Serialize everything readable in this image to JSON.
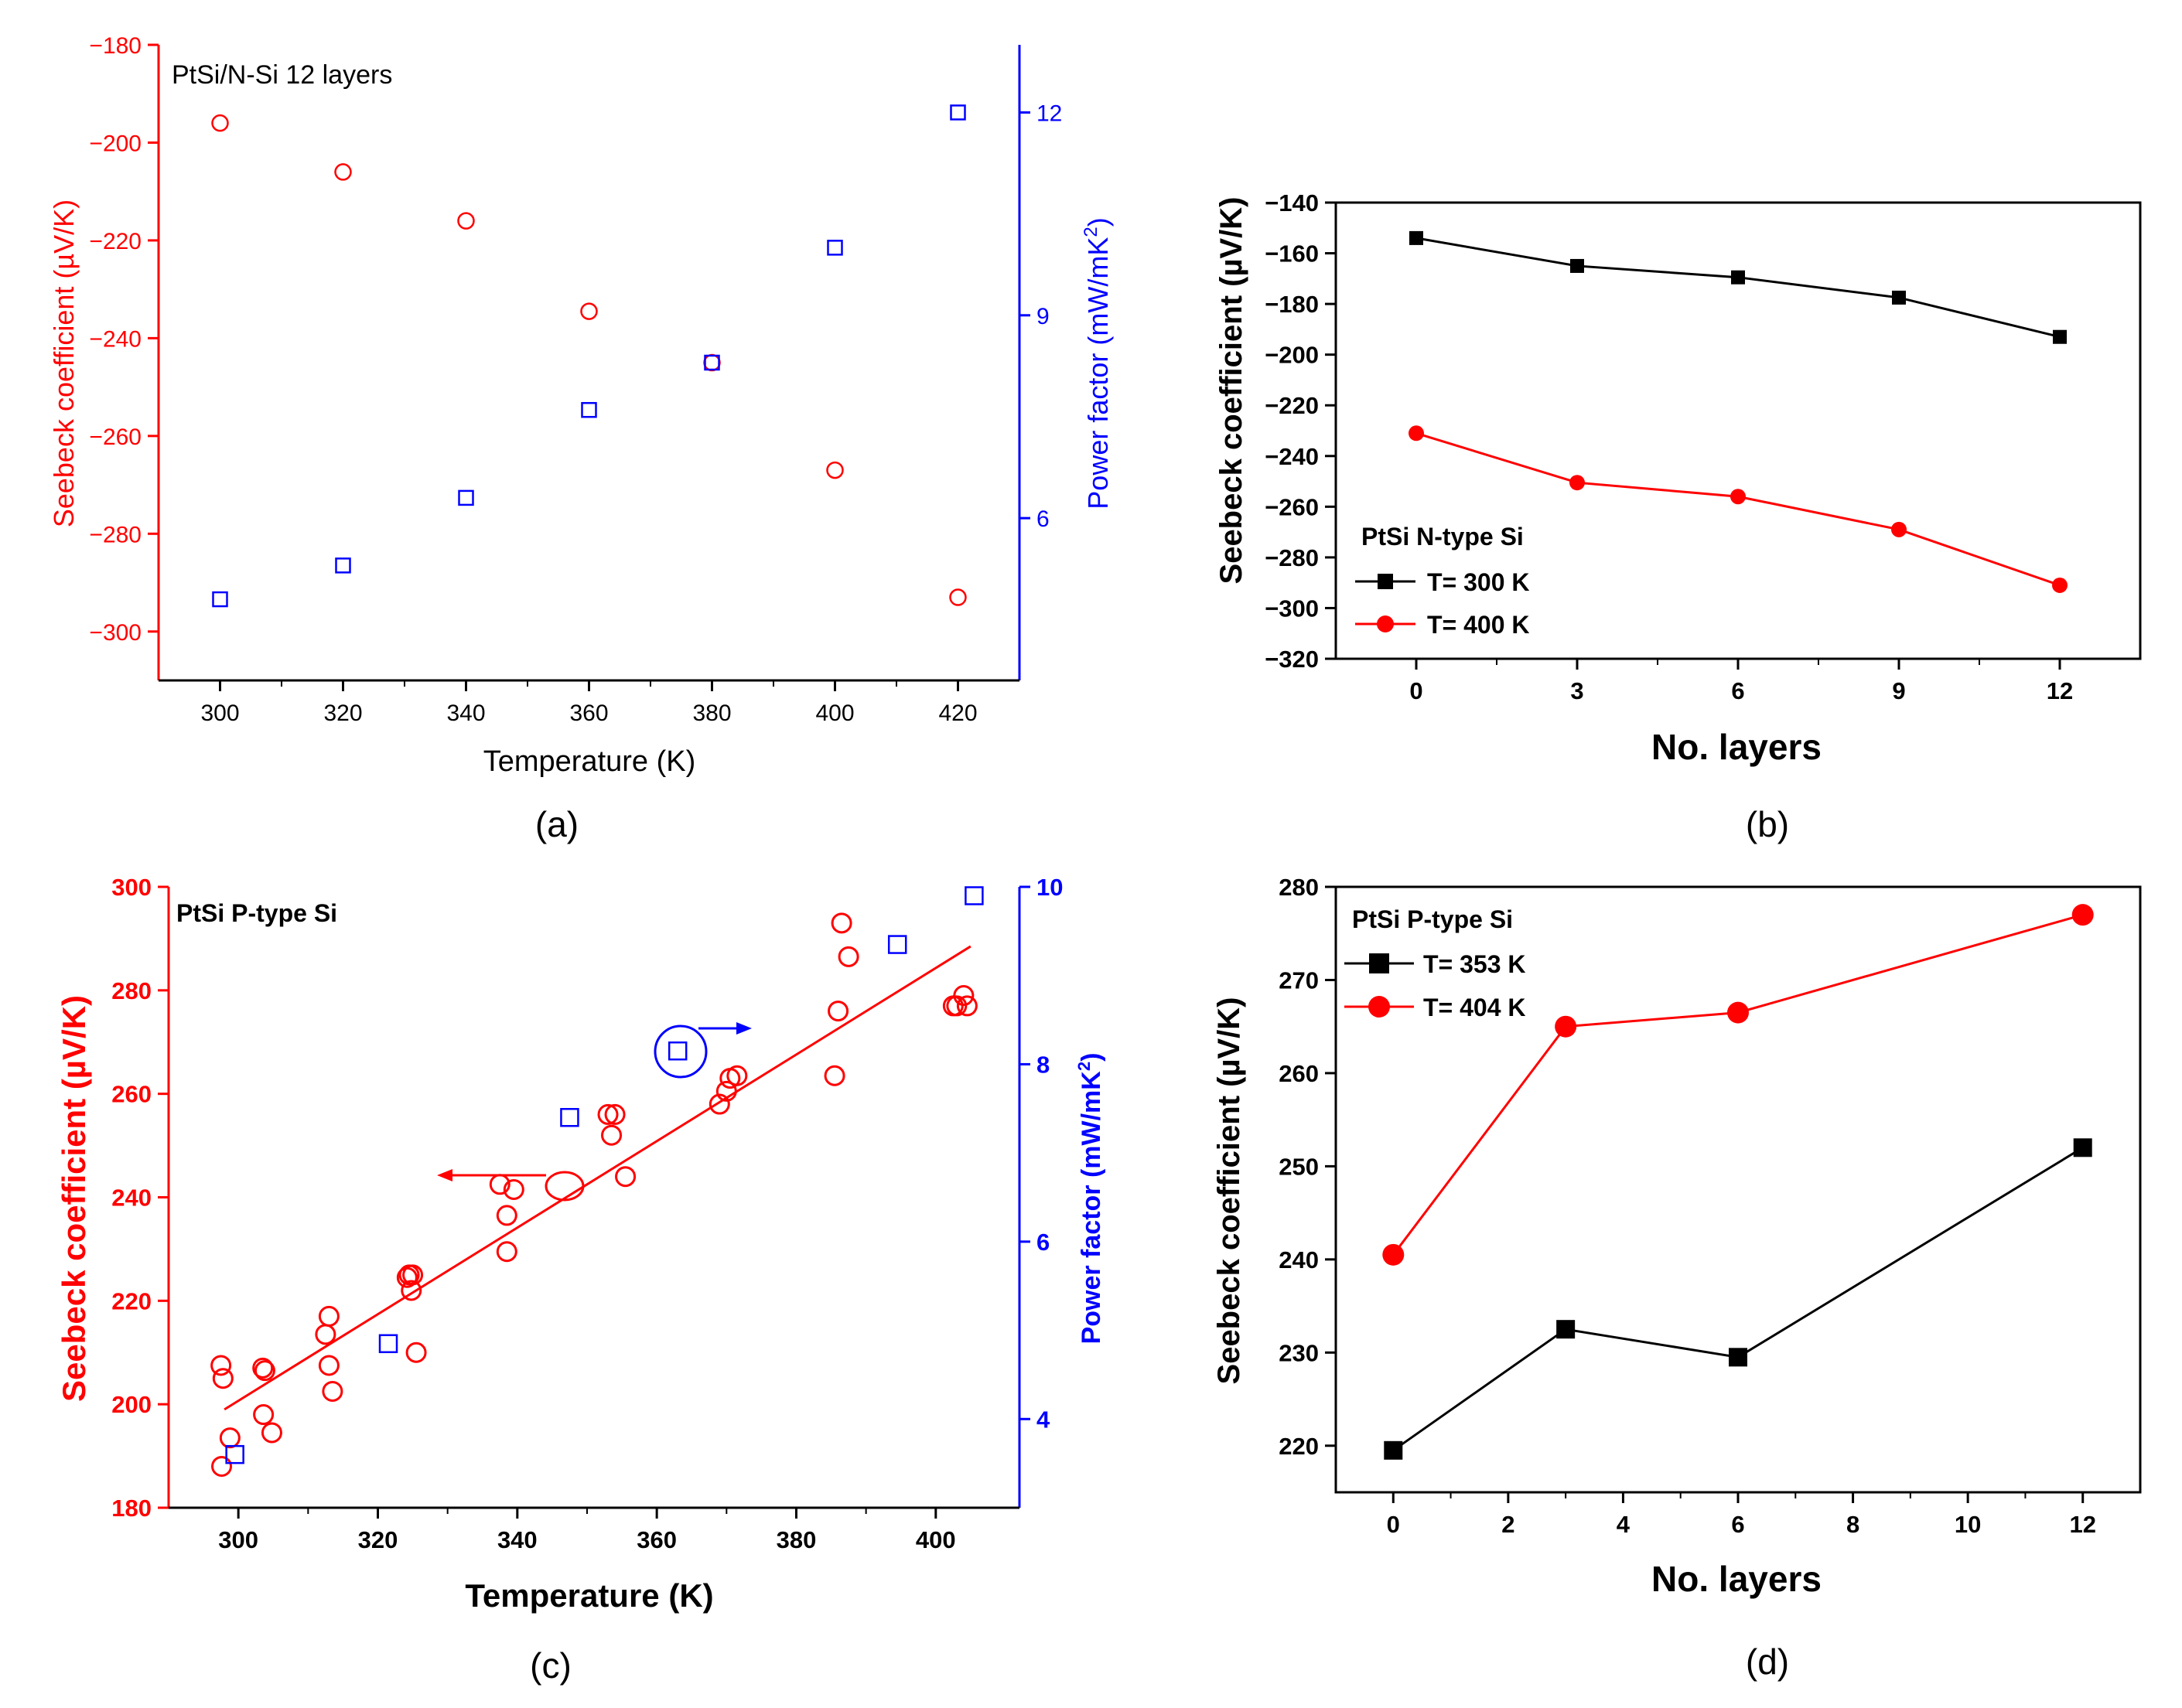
{
  "colors": {
    "red": "#ff0000",
    "blue": "#0000ff",
    "black": "#000000"
  },
  "chart_data": [
    {
      "id": "a",
      "type": "scatter",
      "panel_label": "(a)",
      "annotation": "PtSi/N-Si 12 layers",
      "xlabel": "Temperature (K)",
      "ylabel": "Seebeck coefficient (µV/K)",
      "y2label_main": "Power factor (mW/mK",
      "y2label_sup": "2",
      "y2label_close": ")",
      "xlim": [
        290,
        430
      ],
      "ylim": [
        -310,
        -180
      ],
      "y2lim": [
        3.6,
        13.0
      ],
      "xticks": [
        300,
        320,
        340,
        360,
        380,
        400,
        420
      ],
      "yticks": [
        -180,
        -200,
        -220,
        -240,
        -260,
        -280,
        -300
      ],
      "y2ticks": [
        6,
        9,
        12
      ],
      "series": [
        {
          "name": "Seebeck coefficient",
          "axis": "left",
          "marker": "circle-open",
          "color": "#ff0000",
          "x": [
            300,
            320,
            340,
            360,
            380,
            400,
            420
          ],
          "y": [
            -196,
            -206,
            -216,
            -234.5,
            -245,
            -267,
            -293
          ]
        },
        {
          "name": "Power factor",
          "axis": "right",
          "marker": "square-open",
          "color": "#0000ff",
          "x": [
            300,
            320,
            340,
            360,
            380,
            400,
            420
          ],
          "y": [
            4.8,
            5.3,
            6.3,
            7.6,
            8.3,
            10.0,
            12.0
          ]
        }
      ]
    },
    {
      "id": "b",
      "type": "line",
      "panel_label": "(b)",
      "xlabel": "No. layers",
      "ylabel": "Seebeck coefficient (µV/K)",
      "xlim": [
        -1.5,
        13.5
      ],
      "ylim": [
        -320,
        -140
      ],
      "xticks": [
        0,
        3,
        6,
        9,
        12
      ],
      "yticks": [
        -140,
        -160,
        -180,
        -200,
        -220,
        -240,
        -260,
        -280,
        -300,
        -320
      ],
      "legend_title": "PtSi N-type Si",
      "series": [
        {
          "name": "T= 300 K",
          "marker": "square",
          "color": "#000000",
          "x": [
            0,
            3,
            6,
            9,
            12
          ],
          "y": [
            -154,
            -165,
            -169.5,
            -177.5,
            -193
          ]
        },
        {
          "name": "T= 400 K",
          "marker": "circle",
          "color": "#ff0000",
          "x": [
            0,
            3,
            6,
            9,
            12
          ],
          "y": [
            -231,
            -250.5,
            -256,
            -269,
            -291
          ]
        }
      ]
    },
    {
      "id": "c",
      "type": "scatter",
      "panel_label": "(c)",
      "annotation": "PtSi P-type Si",
      "xlabel": "Temperature (K)",
      "ylabel": "Seebeck coefficient (µV/K)",
      "y2label_main": "Power factor (mW/mK",
      "y2label_sup": "2",
      "y2label_close": ")",
      "xlim": [
        290,
        412
      ],
      "ylim": [
        180,
        300
      ],
      "y2lim": [
        3.0,
        10.0
      ],
      "xticks": [
        300,
        320,
        340,
        360,
        380,
        400
      ],
      "yticks": [
        180,
        200,
        220,
        240,
        260,
        280,
        300
      ],
      "y2ticks": [
        4,
        6,
        8,
        10
      ],
      "fit_line": {
        "x": [
          298,
          405
        ],
        "y": [
          199,
          288.5
        ]
      },
      "series": [
        {
          "name": "Seebeck coefficient",
          "axis": "left",
          "marker": "circle-open",
          "color": "#ff0000",
          "x": [
            297.5,
            297.8,
            297.6,
            298.8,
            303.5,
            303.8,
            303.6,
            304.8,
            312.5,
            313,
            313,
            313.5,
            324.2,
            324.5,
            325,
            324.8,
            325.5,
            337.5,
            338.5,
            338.5,
            339.5,
            353,
            354,
            353.5,
            355.5,
            369,
            370,
            370.5,
            371.5,
            385.5,
            386,
            386.5,
            387.5,
            402.5,
            403,
            404,
            404.5
          ],
          "y": [
            207.5,
            205,
            188,
            193.5,
            207,
            206.5,
            198,
            194.5,
            213.5,
            217,
            207.5,
            202.5,
            224.5,
            225,
            225,
            222,
            210,
            242.5,
            236.5,
            229.5,
            241.5,
            256,
            256,
            252,
            244,
            258,
            260.5,
            263,
            263.5,
            263.5,
            276,
            293,
            286.5,
            277,
            277,
            279,
            277
          ]
        },
        {
          "name": "Power factor",
          "axis": "right",
          "marker": "square-open",
          "color": "#0000ff",
          "x": [
            299.5,
            321.5,
            347.5,
            363,
            394.5,
            405.5
          ],
          "y": [
            3.6,
            4.85,
            7.4,
            8.15,
            9.35,
            9.9
          ]
        }
      ]
    },
    {
      "id": "d",
      "type": "line",
      "panel_label": "(d)",
      "xlabel": "No. layers",
      "ylabel": "Seebeck coefficient (µV/K)",
      "xlim": [
        -1,
        13
      ],
      "ylim": [
        215,
        280
      ],
      "xticks": [
        0,
        2,
        4,
        6,
        8,
        10,
        12
      ],
      "yticks": [
        220,
        230,
        240,
        250,
        260,
        270,
        280
      ],
      "legend_title": "PtSi P-type Si",
      "series": [
        {
          "name": "T= 353 K",
          "marker": "square",
          "color": "#000000",
          "x": [
            0,
            3,
            6,
            12
          ],
          "y": [
            219.5,
            232.5,
            229.5,
            252
          ]
        },
        {
          "name": "T= 404 K",
          "marker": "circle",
          "color": "#ff0000",
          "x": [
            0,
            3,
            6,
            12
          ],
          "y": [
            240.5,
            265,
            266.5,
            277
          ]
        }
      ]
    }
  ]
}
